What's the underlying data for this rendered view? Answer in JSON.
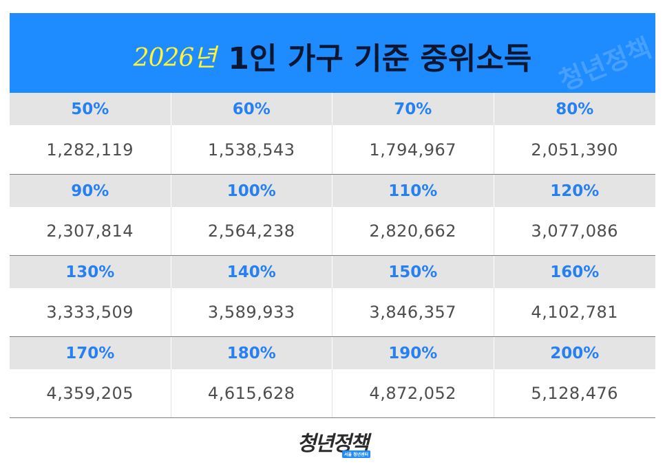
{
  "header": {
    "year": "2026년",
    "title": "1인 가구 기준 중위소득",
    "watermark": "청년정책"
  },
  "table": {
    "rows": [
      {
        "percents": [
          "50%",
          "60%",
          "70%",
          "80%"
        ],
        "values": [
          "1,282,119",
          "1,538,543",
          "1,794,967",
          "2,051,390"
        ]
      },
      {
        "percents": [
          "90%",
          "100%",
          "110%",
          "120%"
        ],
        "values": [
          "2,307,814",
          "2,564,238",
          "2,820,662",
          "3,077,086"
        ]
      },
      {
        "percents": [
          "130%",
          "140%",
          "150%",
          "160%"
        ],
        "values": [
          "3,333,509",
          "3,589,933",
          "3,846,357",
          "4,102,781"
        ]
      },
      {
        "percents": [
          "170%",
          "180%",
          "190%",
          "200%"
        ],
        "values": [
          "4,359,205",
          "4,615,628",
          "4,872,052",
          "5,128,476"
        ]
      }
    ]
  },
  "footer": {
    "logo": "청년정책",
    "logo_tag": "서울 청년센터"
  },
  "colors": {
    "banner": "#1e8bff",
    "percent_text": "#2680f2",
    "year_text": "#fff23a",
    "title_text": "#0b1730",
    "percent_row_bg": "#e4e4e4"
  }
}
